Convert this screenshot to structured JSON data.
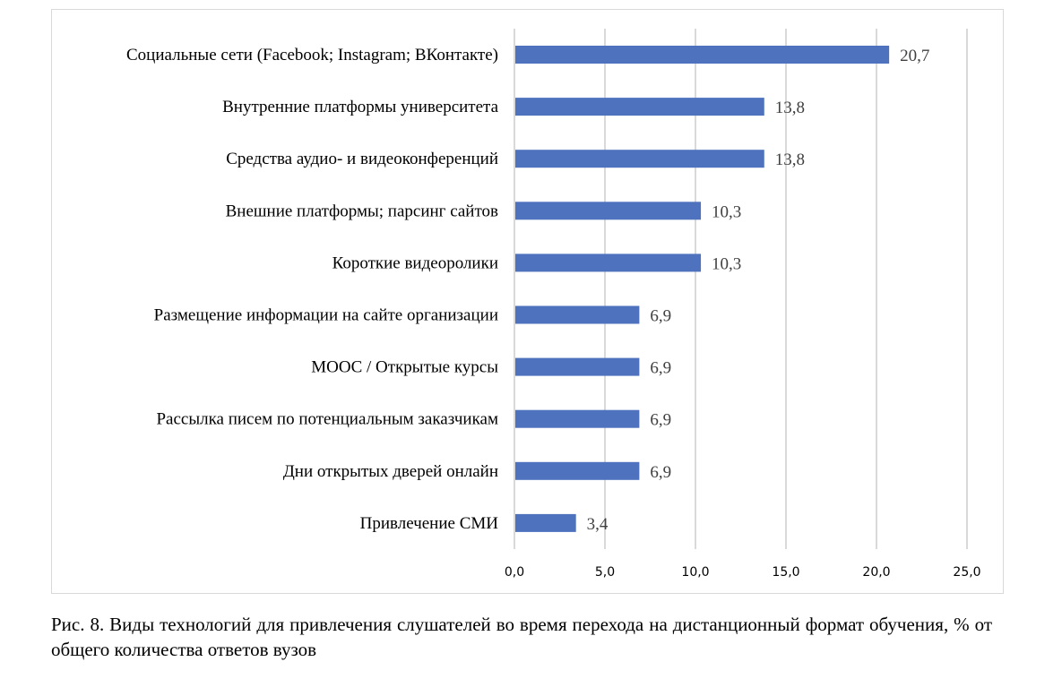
{
  "chart_data": {
    "type": "bar",
    "orientation": "horizontal",
    "categories": [
      "Социальные сети (Facebook; Instagram; ВКонтакте)",
      "Внутренние платформы университета",
      "Средства аудио- и видеоконференций",
      "Внешние платформы; парсинг сайтов",
      "Короткие видеоролики",
      "Размещение информации на сайте организации",
      "MOOC / Открытые курсы",
      "Рассылка писем по потенциальным заказчикам",
      "Дни открытых дверей онлайн",
      "Привлечение СМИ"
    ],
    "values": [
      20.7,
      13.8,
      13.8,
      10.3,
      10.3,
      6.9,
      6.9,
      6.9,
      6.9,
      3.4
    ],
    "value_labels": [
      "20,7",
      "13,8",
      "13,8",
      "10,3",
      "10,3",
      "6,9",
      "6,9",
      "6,9",
      "6,9",
      "3,4"
    ],
    "xlim": [
      0,
      25
    ],
    "x_ticks": [
      "0,0",
      "5,0",
      "10,0",
      "15,0",
      "20,0",
      "25,0"
    ],
    "grid": "vertical",
    "bar_color": "#4e72bd",
    "title": "",
    "xlabel": "",
    "ylabel": ""
  },
  "caption": "Рис. 8. Виды технологий для привлечения слушателей во время перехода на дистанционный формат обучения, % от общего количества ответов вузов"
}
